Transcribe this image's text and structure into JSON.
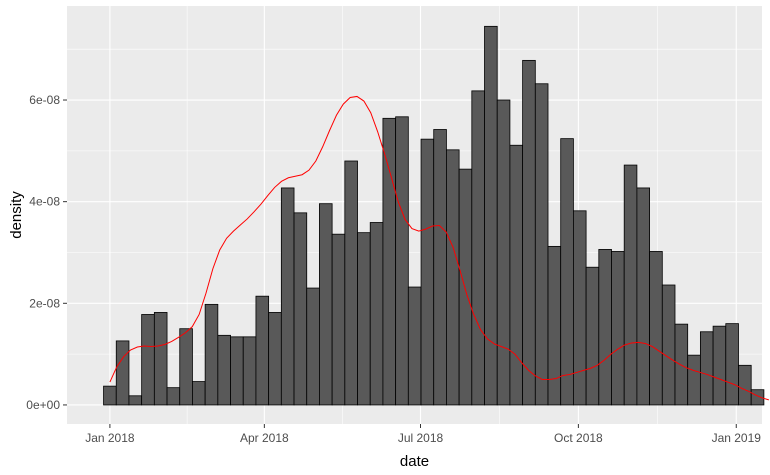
{
  "chart_data": {
    "type": "bar",
    "xlabel": "date",
    "ylabel": "density",
    "x_start": "2018-01-01",
    "bin_width_days": 7.4,
    "values": [
      0.37,
      1.26,
      0.18,
      1.78,
      1.82,
      0.34,
      1.5,
      0.46,
      1.98,
      1.37,
      1.34,
      1.34,
      2.14,
      1.82,
      4.27,
      3.78,
      2.3,
      3.96,
      3.36,
      4.8,
      3.39,
      3.59,
      5.64,
      5.67,
      2.32,
      5.23,
      5.42,
      5.02,
      4.64,
      6.18,
      7.45,
      6.0,
      5.11,
      6.78,
      6.32,
      3.12,
      5.24,
      3.82,
      2.71,
      3.06,
      3.02,
      4.72,
      4.27,
      3.02,
      2.36,
      1.59,
      0.98,
      1.44,
      1.55,
      1.6,
      0.78,
      0.3
    ],
    "value_scale": "1e-08",
    "density_curve": [
      [
        0,
        0.45
      ],
      [
        4,
        0.75
      ],
      [
        8,
        0.95
      ],
      [
        12,
        1.08
      ],
      [
        16,
        1.14
      ],
      [
        20,
        1.16
      ],
      [
        24,
        1.15
      ],
      [
        28,
        1.16
      ],
      [
        32,
        1.19
      ],
      [
        36,
        1.25
      ],
      [
        40,
        1.33
      ],
      [
        44,
        1.42
      ],
      [
        48,
        1.54
      ],
      [
        52,
        1.78
      ],
      [
        56,
        2.2
      ],
      [
        60,
        2.68
      ],
      [
        64,
        3.05
      ],
      [
        68,
        3.28
      ],
      [
        72,
        3.42
      ],
      [
        76,
        3.54
      ],
      [
        80,
        3.66
      ],
      [
        84,
        3.8
      ],
      [
        88,
        3.95
      ],
      [
        92,
        4.12
      ],
      [
        96,
        4.28
      ],
      [
        100,
        4.4
      ],
      [
        104,
        4.47
      ],
      [
        108,
        4.5
      ],
      [
        112,
        4.53
      ],
      [
        116,
        4.62
      ],
      [
        120,
        4.8
      ],
      [
        124,
        5.08
      ],
      [
        128,
        5.4
      ],
      [
        132,
        5.7
      ],
      [
        136,
        5.92
      ],
      [
        140,
        6.05
      ],
      [
        144,
        6.07
      ],
      [
        148,
        5.98
      ],
      [
        152,
        5.75
      ],
      [
        156,
        5.38
      ],
      [
        160,
        4.95
      ],
      [
        164,
        4.48
      ],
      [
        168,
        4.0
      ],
      [
        172,
        3.65
      ],
      [
        176,
        3.47
      ],
      [
        180,
        3.42
      ],
      [
        184,
        3.46
      ],
      [
        188,
        3.52
      ],
      [
        192,
        3.53
      ],
      [
        196,
        3.4
      ],
      [
        200,
        3.1
      ],
      [
        204,
        2.65
      ],
      [
        208,
        2.17
      ],
      [
        212,
        1.78
      ],
      [
        216,
        1.48
      ],
      [
        220,
        1.3
      ],
      [
        224,
        1.2
      ],
      [
        228,
        1.15
      ],
      [
        232,
        1.1
      ],
      [
        236,
        1.0
      ],
      [
        240,
        0.83
      ],
      [
        244,
        0.68
      ],
      [
        248,
        0.57
      ],
      [
        252,
        0.5
      ],
      [
        256,
        0.5
      ],
      [
        260,
        0.52
      ],
      [
        264,
        0.58
      ],
      [
        268,
        0.6
      ],
      [
        272,
        0.64
      ],
      [
        276,
        0.68
      ],
      [
        280,
        0.72
      ],
      [
        284,
        0.78
      ],
      [
        288,
        0.88
      ],
      [
        292,
        1.0
      ],
      [
        296,
        1.1
      ],
      [
        300,
        1.18
      ],
      [
        304,
        1.22
      ],
      [
        308,
        1.23
      ],
      [
        312,
        1.21
      ],
      [
        316,
        1.15
      ],
      [
        320,
        1.06
      ],
      [
        324,
        0.97
      ],
      [
        328,
        0.88
      ],
      [
        332,
        0.8
      ],
      [
        336,
        0.73
      ],
      [
        340,
        0.68
      ],
      [
        344,
        0.64
      ],
      [
        348,
        0.6
      ],
      [
        352,
        0.55
      ],
      [
        356,
        0.5
      ],
      [
        360,
        0.45
      ],
      [
        364,
        0.4
      ],
      [
        368,
        0.33
      ],
      [
        372,
        0.27
      ],
      [
        376,
        0.2
      ],
      [
        380,
        0.14
      ],
      [
        384,
        0.1
      ]
    ],
    "x_ticks": [
      {
        "date": "2018-01-01",
        "label": "Jan 2018"
      },
      {
        "date": "2018-04-01",
        "label": "Apr 2018"
      },
      {
        "date": "2018-07-01",
        "label": "Jul 2018"
      },
      {
        "date": "2018-10-01",
        "label": "Oct 2018"
      },
      {
        "date": "2019-01-01",
        "label": "Jan 2019"
      }
    ],
    "y_ticks": [
      {
        "value": 0,
        "label": "0e+00"
      },
      {
        "value": 2,
        "label": "2e-08"
      },
      {
        "value": 4,
        "label": "4e-08"
      },
      {
        "value": 6,
        "label": "6e-08"
      }
    ],
    "xlim": [
      "2017-12-07",
      "2019-01-16"
    ],
    "ylim": [
      -0.375,
      7.85
    ],
    "grid": true,
    "colors": {
      "panel_background": "#ebebeb",
      "grid_major": "#ffffff",
      "bar_fill": "#595959",
      "bar_outline": "#000000",
      "density_line": "#ff0000"
    }
  }
}
